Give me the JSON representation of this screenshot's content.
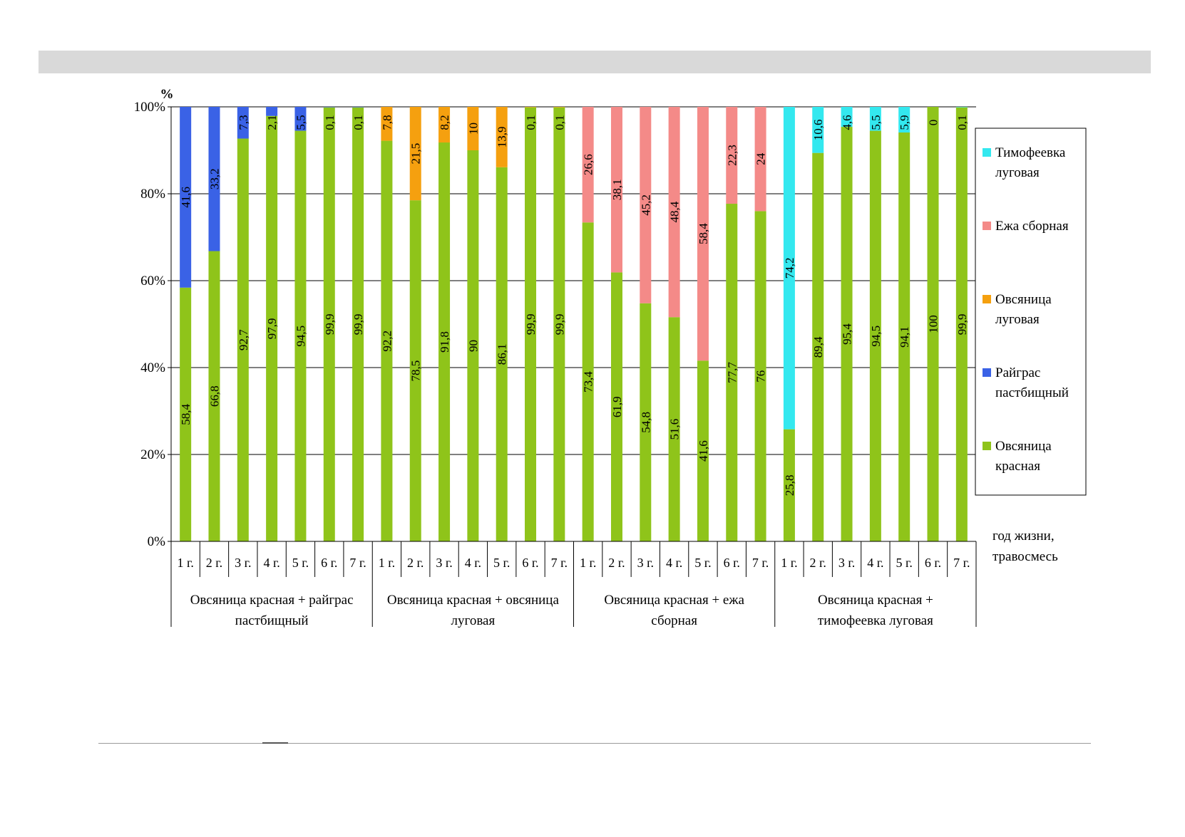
{
  "chart_data": {
    "type": "bar",
    "stacked": true,
    "normalized_percent": true,
    "y_unit_label": "%",
    "x_axis_caption": [
      "год жизни,",
      "травосмесь"
    ],
    "ylim": [
      0,
      100
    ],
    "y_ticks": [
      "0%",
      "20%",
      "40%",
      "60%",
      "80%",
      "100%"
    ],
    "grid": true,
    "legend_position": "right",
    "categories": [
      "1 г.",
      "2 г.",
      "3 г.",
      "4 г.",
      "5 г.",
      "6 г.",
      "7 г."
    ],
    "groups": [
      {
        "label": [
          "Овсяница красная + райграс",
          "пастбищный"
        ],
        "base_values": [
          58.4,
          66.8,
          92.7,
          97.9,
          94.5,
          99.9,
          99.9
        ],
        "top_series": "Райграс пастбищный",
        "top_values": [
          41.6,
          33.2,
          7.3,
          2.1,
          5.5,
          0.1,
          0.1
        ]
      },
      {
        "label": [
          "Овсяница красная + овсяница",
          "луговая"
        ],
        "base_values": [
          92.2,
          78.5,
          91.8,
          90,
          86.1,
          99.9,
          99.9
        ],
        "top_series": "Овсяница луговая",
        "top_values": [
          7.8,
          21.5,
          8.2,
          10,
          13.9,
          0.1,
          0.1
        ]
      },
      {
        "label": [
          "Овсяница красная + ежа",
          "сборная"
        ],
        "base_values": [
          73.4,
          61.9,
          54.8,
          51.6,
          41.6,
          77.7,
          76
        ],
        "top_series": "Ежа сборная",
        "top_values": [
          26.6,
          38.1,
          45.2,
          48.4,
          58.4,
          22.3,
          24
        ]
      },
      {
        "label": [
          "Овсяница красная +",
          "тимофеевка луговая"
        ],
        "base_values": [
          25.8,
          89.4,
          95.4,
          94.5,
          94.1,
          100,
          99.9
        ],
        "top_series": "Тимофеевка луговая",
        "top_values": [
          74.2,
          10.6,
          4.6,
          5.5,
          5.9,
          0,
          0.1
        ]
      }
    ],
    "base_series": "Овсяница красная",
    "legend": [
      {
        "name": "Тимофеевка луговая",
        "lines": [
          "Тимофеевка",
          "луговая"
        ],
        "color": "#33e8ef"
      },
      {
        "name": "Ежа сборная",
        "lines": [
          "Ежа сборная"
        ],
        "color": "#f48a88"
      },
      {
        "name": "Овсяница луговая",
        "lines": [
          "Овсяница",
          "луговая"
        ],
        "color": "#f5a00f"
      },
      {
        "name": "Райграс пастбищный",
        "lines": [
          "Райграс",
          "пастбищный"
        ],
        "color": "#3a62e6"
      },
      {
        "name": "Овсяница красная",
        "lines": [
          "Овсяница",
          "красная"
        ],
        "color": "#8fc41a"
      }
    ],
    "series_colors": {
      "Овсяница красная": "#8fc41a",
      "Райграс пастбищный": "#3a62e6",
      "Овсяница луговая": "#f5a00f",
      "Ежа сборная": "#f48a88",
      "Тимофеевка луговая": "#33e8ef"
    }
  }
}
